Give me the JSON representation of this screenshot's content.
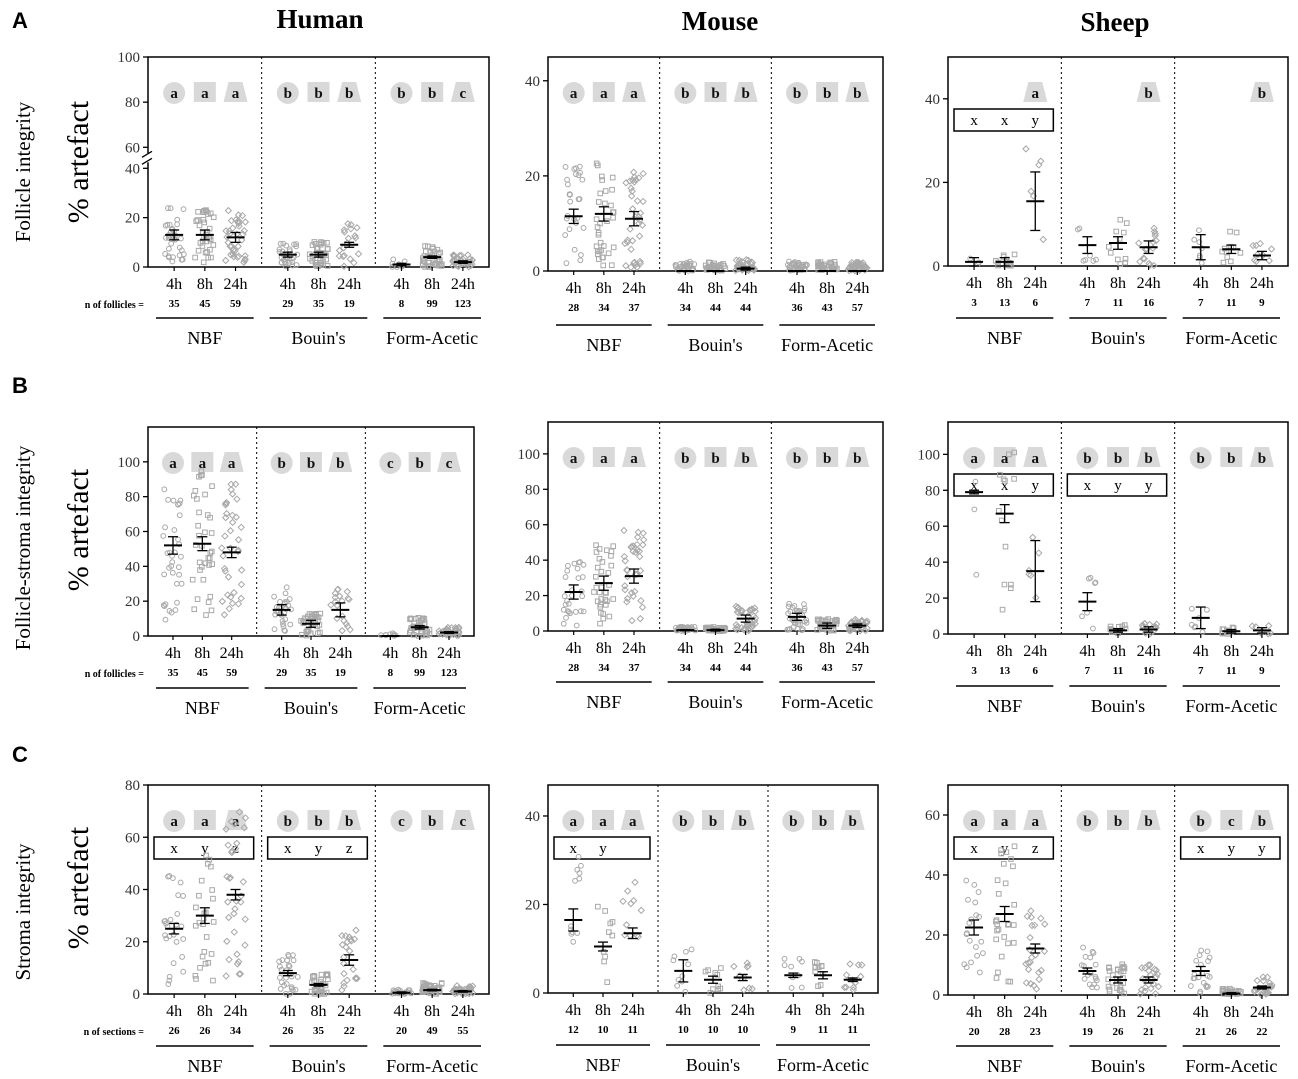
{
  "figure": {
    "species": [
      "Human",
      "Mouse",
      "Sheep"
    ],
    "row_letters": [
      "A",
      "B",
      "C"
    ],
    "row_titles": [
      "Follicle integrity",
      "Follicle-stroma integrity",
      "Stroma integrity"
    ],
    "ylabel": "% artefact",
    "fixatives": [
      "NBF",
      "Bouin's",
      "Form-Acetic"
    ],
    "timepoints": [
      "4h",
      "8h",
      "24h"
    ],
    "n_labels": [
      "n of follicles =",
      "n of follicles =",
      "n of sections ="
    ]
  },
  "colors": {
    "points": "#a8a8a8",
    "letter_bg": "#d9d9d9",
    "line": "#000000"
  },
  "chart_data": [
    {
      "type": "scatter",
      "row": "A",
      "species": "Human",
      "ylabel": "% artefact",
      "title": "Human",
      "yticks": [
        0,
        20,
        40,
        60,
        80,
        100
      ],
      "ylim": [
        0,
        100
      ],
      "axis_break": [
        40,
        60
      ],
      "group_letters": [
        [
          "a",
          "a",
          "a"
        ],
        [
          "b",
          "b",
          "b"
        ],
        [
          "b",
          "b",
          "c"
        ]
      ],
      "group_letter_shapes": [
        [
          "c",
          "s",
          "t"
        ],
        [
          "c",
          "s",
          "t"
        ],
        [
          "c",
          "s",
          "t"
        ]
      ],
      "stat_box": [
        null,
        null,
        null
      ],
      "n": [
        [
          35,
          45,
          59
        ],
        [
          29,
          35,
          19
        ],
        [
          8,
          99,
          123
        ]
      ],
      "mean": [
        [
          13,
          13,
          12
        ],
        [
          5,
          5,
          9
        ],
        [
          1,
          4,
          2
        ]
      ],
      "sem": [
        [
          2,
          2,
          2
        ],
        [
          1,
          1,
          1
        ],
        [
          0.5,
          0.5,
          0.5
        ]
      ],
      "show_n_label": true
    },
    {
      "type": "scatter",
      "row": "A",
      "species": "Mouse",
      "ylabel": "",
      "title": "Mouse",
      "yticks": [
        0,
        20,
        40
      ],
      "ylim": [
        0,
        45
      ],
      "group_letters": [
        [
          "a",
          "a",
          "a"
        ],
        [
          "b",
          "b",
          "b"
        ],
        [
          "b",
          "b",
          "b"
        ]
      ],
      "group_letter_shapes": [
        [
          "c",
          "s",
          "t"
        ],
        [
          "c",
          "s",
          "t"
        ],
        [
          "c",
          "s",
          "t"
        ]
      ],
      "stat_box": [
        null,
        null,
        null
      ],
      "n": [
        [
          28,
          34,
          37
        ],
        [
          34,
          44,
          44
        ],
        [
          36,
          43,
          57
        ]
      ],
      "mean": [
        [
          11.5,
          12,
          11
        ],
        [
          0,
          0,
          0.5
        ],
        [
          0,
          0,
          0
        ]
      ],
      "sem": [
        [
          1.5,
          1.5,
          1.5
        ],
        [
          0,
          0,
          0.3
        ],
        [
          0,
          0,
          0
        ]
      ],
      "show_n_label": false
    },
    {
      "type": "scatter",
      "row": "A",
      "species": "Sheep",
      "ylabel": "",
      "title": "Sheep",
      "yticks": [
        0,
        20,
        40
      ],
      "ylim": [
        0,
        50
      ],
      "group_letters": [
        [
          "",
          "",
          "a"
        ],
        [
          "",
          "",
          "b"
        ],
        [
          "",
          "",
          "b"
        ]
      ],
      "group_letter_shapes": [
        [
          "c",
          "s",
          "t"
        ],
        [
          "c",
          "s",
          "t"
        ],
        [
          "c",
          "s",
          "t"
        ]
      ],
      "stat_box": [
        [
          "x",
          "x",
          "y"
        ],
        null,
        null
      ],
      "n": [
        [
          3,
          13,
          6
        ],
        [
          7,
          11,
          16
        ],
        [
          7,
          11,
          9
        ]
      ],
      "mean": [
        [
          1,
          1,
          15.5
        ],
        [
          5,
          5.5,
          4.5
        ],
        [
          4.5,
          4,
          2.5
        ]
      ],
      "sem": [
        [
          1,
          1,
          7
        ],
        [
          2,
          1.5,
          1.5
        ],
        [
          3,
          1,
          1
        ]
      ],
      "show_n_label": false
    },
    {
      "type": "scatter",
      "row": "B",
      "species": "Human",
      "ylabel": "% artefact",
      "title": "",
      "yticks": [
        0,
        20,
        40,
        60,
        80,
        100
      ],
      "ylim": [
        0,
        120
      ],
      "group_letters": [
        [
          "a",
          "a",
          "a"
        ],
        [
          "b",
          "b",
          "b"
        ],
        [
          "c",
          "b",
          "c"
        ]
      ],
      "group_letter_shapes": [
        [
          "c",
          "s",
          "t"
        ],
        [
          "c",
          "s",
          "t"
        ],
        [
          "c",
          "s",
          "t"
        ]
      ],
      "stat_box": [
        null,
        null,
        null
      ],
      "n": [
        [
          35,
          45,
          59
        ],
        [
          29,
          35,
          19
        ],
        [
          8,
          99,
          123
        ]
      ],
      "mean": [
        [
          52,
          53,
          48
        ],
        [
          15,
          7,
          15
        ],
        [
          0,
          5,
          2
        ]
      ],
      "sem": [
        [
          5,
          4,
          3
        ],
        [
          3,
          2,
          4
        ],
        [
          0,
          1,
          0.5
        ]
      ],
      "show_n_label": true
    },
    {
      "type": "scatter",
      "row": "B",
      "species": "Mouse",
      "ylabel": "",
      "title": "",
      "yticks": [
        0,
        20,
        40,
        60,
        80,
        100
      ],
      "ylim": [
        0,
        118
      ],
      "group_letters": [
        [
          "a",
          "a",
          "a"
        ],
        [
          "b",
          "b",
          "b"
        ],
        [
          "b",
          "b",
          "b"
        ]
      ],
      "group_letter_shapes": [
        [
          "c",
          "s",
          "t"
        ],
        [
          "c",
          "s",
          "t"
        ],
        [
          "c",
          "s",
          "t"
        ]
      ],
      "stat_box": [
        null,
        null,
        null
      ],
      "n": [
        [
          28,
          34,
          37
        ],
        [
          34,
          44,
          44
        ],
        [
          36,
          43,
          57
        ]
      ],
      "mean": [
        [
          22,
          27,
          31
        ],
        [
          0.5,
          0.5,
          7
        ],
        [
          8,
          3,
          3
        ]
      ],
      "sem": [
        [
          4,
          4,
          4
        ],
        [
          0.3,
          0.5,
          2
        ],
        [
          2,
          1.5,
          1
        ]
      ],
      "show_n_label": false
    },
    {
      "type": "scatter",
      "row": "B",
      "species": "Sheep",
      "ylabel": "",
      "title": "",
      "yticks": [
        0,
        20,
        40,
        60,
        80,
        100
      ],
      "ylim": [
        0,
        118
      ],
      "group_letters": [
        [
          "a",
          "a",
          "a"
        ],
        [
          "b",
          "b",
          "b"
        ],
        [
          "b",
          "b",
          "b"
        ]
      ],
      "group_letter_shapes": [
        [
          "c",
          "s",
          "t"
        ],
        [
          "c",
          "s",
          "t"
        ],
        [
          "c",
          "s",
          "t"
        ]
      ],
      "stat_box": [
        [
          "x",
          "x",
          "y"
        ],
        [
          "x",
          "y",
          "y"
        ],
        null
      ],
      "n": [
        [
          3,
          13,
          6
        ],
        [
          7,
          11,
          16
        ],
        [
          7,
          11,
          9
        ]
      ],
      "mean": [
        [
          79,
          67,
          35
        ],
        [
          18,
          2,
          2.5
        ],
        [
          9,
          1.5,
          2
        ]
      ],
      "sem": [
        [
          1,
          5,
          17
        ],
        [
          5,
          1,
          1.5
        ],
        [
          6,
          1,
          1.5
        ]
      ],
      "show_n_label": false
    },
    {
      "type": "scatter",
      "row": "C",
      "species": "Human",
      "ylabel": "% artefact",
      "title": "",
      "yticks": [
        0,
        20,
        40,
        60,
        80
      ],
      "ylim": [
        0,
        80
      ],
      "group_letters": [
        [
          "a",
          "a",
          "a"
        ],
        [
          "b",
          "b",
          "b"
        ],
        [
          "c",
          "b",
          "c"
        ]
      ],
      "group_letter_shapes": [
        [
          "c",
          "s",
          "t"
        ],
        [
          "c",
          "s",
          "t"
        ],
        [
          "c",
          "s",
          "t"
        ]
      ],
      "stat_box": [
        [
          "x",
          "y",
          "z"
        ],
        [
          "x",
          "y",
          "z"
        ],
        null
      ],
      "n": [
        [
          26,
          26,
          34
        ],
        [
          26,
          35,
          22
        ],
        [
          20,
          49,
          55
        ]
      ],
      "mean": [
        [
          25,
          30,
          38
        ],
        [
          8,
          3.5,
          13
        ],
        [
          0.5,
          1.5,
          1
        ]
      ],
      "sem": [
        [
          2,
          3,
          2
        ],
        [
          1,
          0.5,
          2
        ],
        [
          0.3,
          0.3,
          0.3
        ]
      ],
      "show_n_label": true
    },
    {
      "type": "scatter",
      "row": "C",
      "species": "Mouse",
      "ylabel": "",
      "title": "",
      "yticks": [
        0,
        20,
        40
      ],
      "ylim": [
        0,
        47
      ],
      "group_letters": [
        [
          "a",
          "a",
          "a"
        ],
        [
          "b",
          "b",
          "b"
        ],
        [
          "b",
          "b",
          "b"
        ]
      ],
      "group_letter_shapes": [
        [
          "c",
          "s",
          "t"
        ],
        [
          "c",
          "s",
          "t"
        ],
        [
          "c",
          "s",
          "t"
        ]
      ],
      "stat_box": [
        [
          "x",
          "y",
          ""
        ],
        null,
        null
      ],
      "n": [
        [
          12,
          10,
          11
        ],
        [
          10,
          10,
          10
        ],
        [
          9,
          11,
          11
        ]
      ],
      "mean": [
        [
          16.5,
          10.5,
          13.5
        ],
        [
          5,
          3,
          3.5
        ],
        [
          4,
          4,
          3
        ]
      ],
      "sem": [
        [
          2.5,
          1,
          1.2
        ],
        [
          2.5,
          0.8,
          0.7
        ],
        [
          0.5,
          0.8,
          0.4
        ]
      ],
      "show_n_label": false
    },
    {
      "type": "scatter",
      "row": "C",
      "species": "Sheep",
      "ylabel": "",
      "title": "",
      "yticks": [
        0,
        20,
        40,
        60
      ],
      "ylim": [
        0,
        70
      ],
      "group_letters": [
        [
          "a",
          "a",
          "a"
        ],
        [
          "b",
          "b",
          "b"
        ],
        [
          "b",
          "c",
          "b"
        ]
      ],
      "group_letter_shapes": [
        [
          "c",
          "s",
          "t"
        ],
        [
          "c",
          "s",
          "t"
        ],
        [
          "c",
          "s",
          "t"
        ]
      ],
      "stat_box": [
        [
          "x",
          "y",
          "z"
        ],
        null,
        [
          "x",
          "y",
          "y"
        ]
      ],
      "n": [
        [
          20,
          28,
          23
        ],
        [
          19,
          26,
          21
        ],
        [
          21,
          26,
          22
        ]
      ],
      "mean": [
        [
          22.5,
          27,
          15.5
        ],
        [
          8,
          5,
          5
        ],
        [
          8,
          0.5,
          2.5
        ]
      ],
      "sem": [
        [
          2.5,
          2.5,
          1.5
        ],
        [
          1,
          1,
          1
        ],
        [
          1.5,
          0.3,
          0.5
        ]
      ],
      "show_n_label": false
    }
  ]
}
